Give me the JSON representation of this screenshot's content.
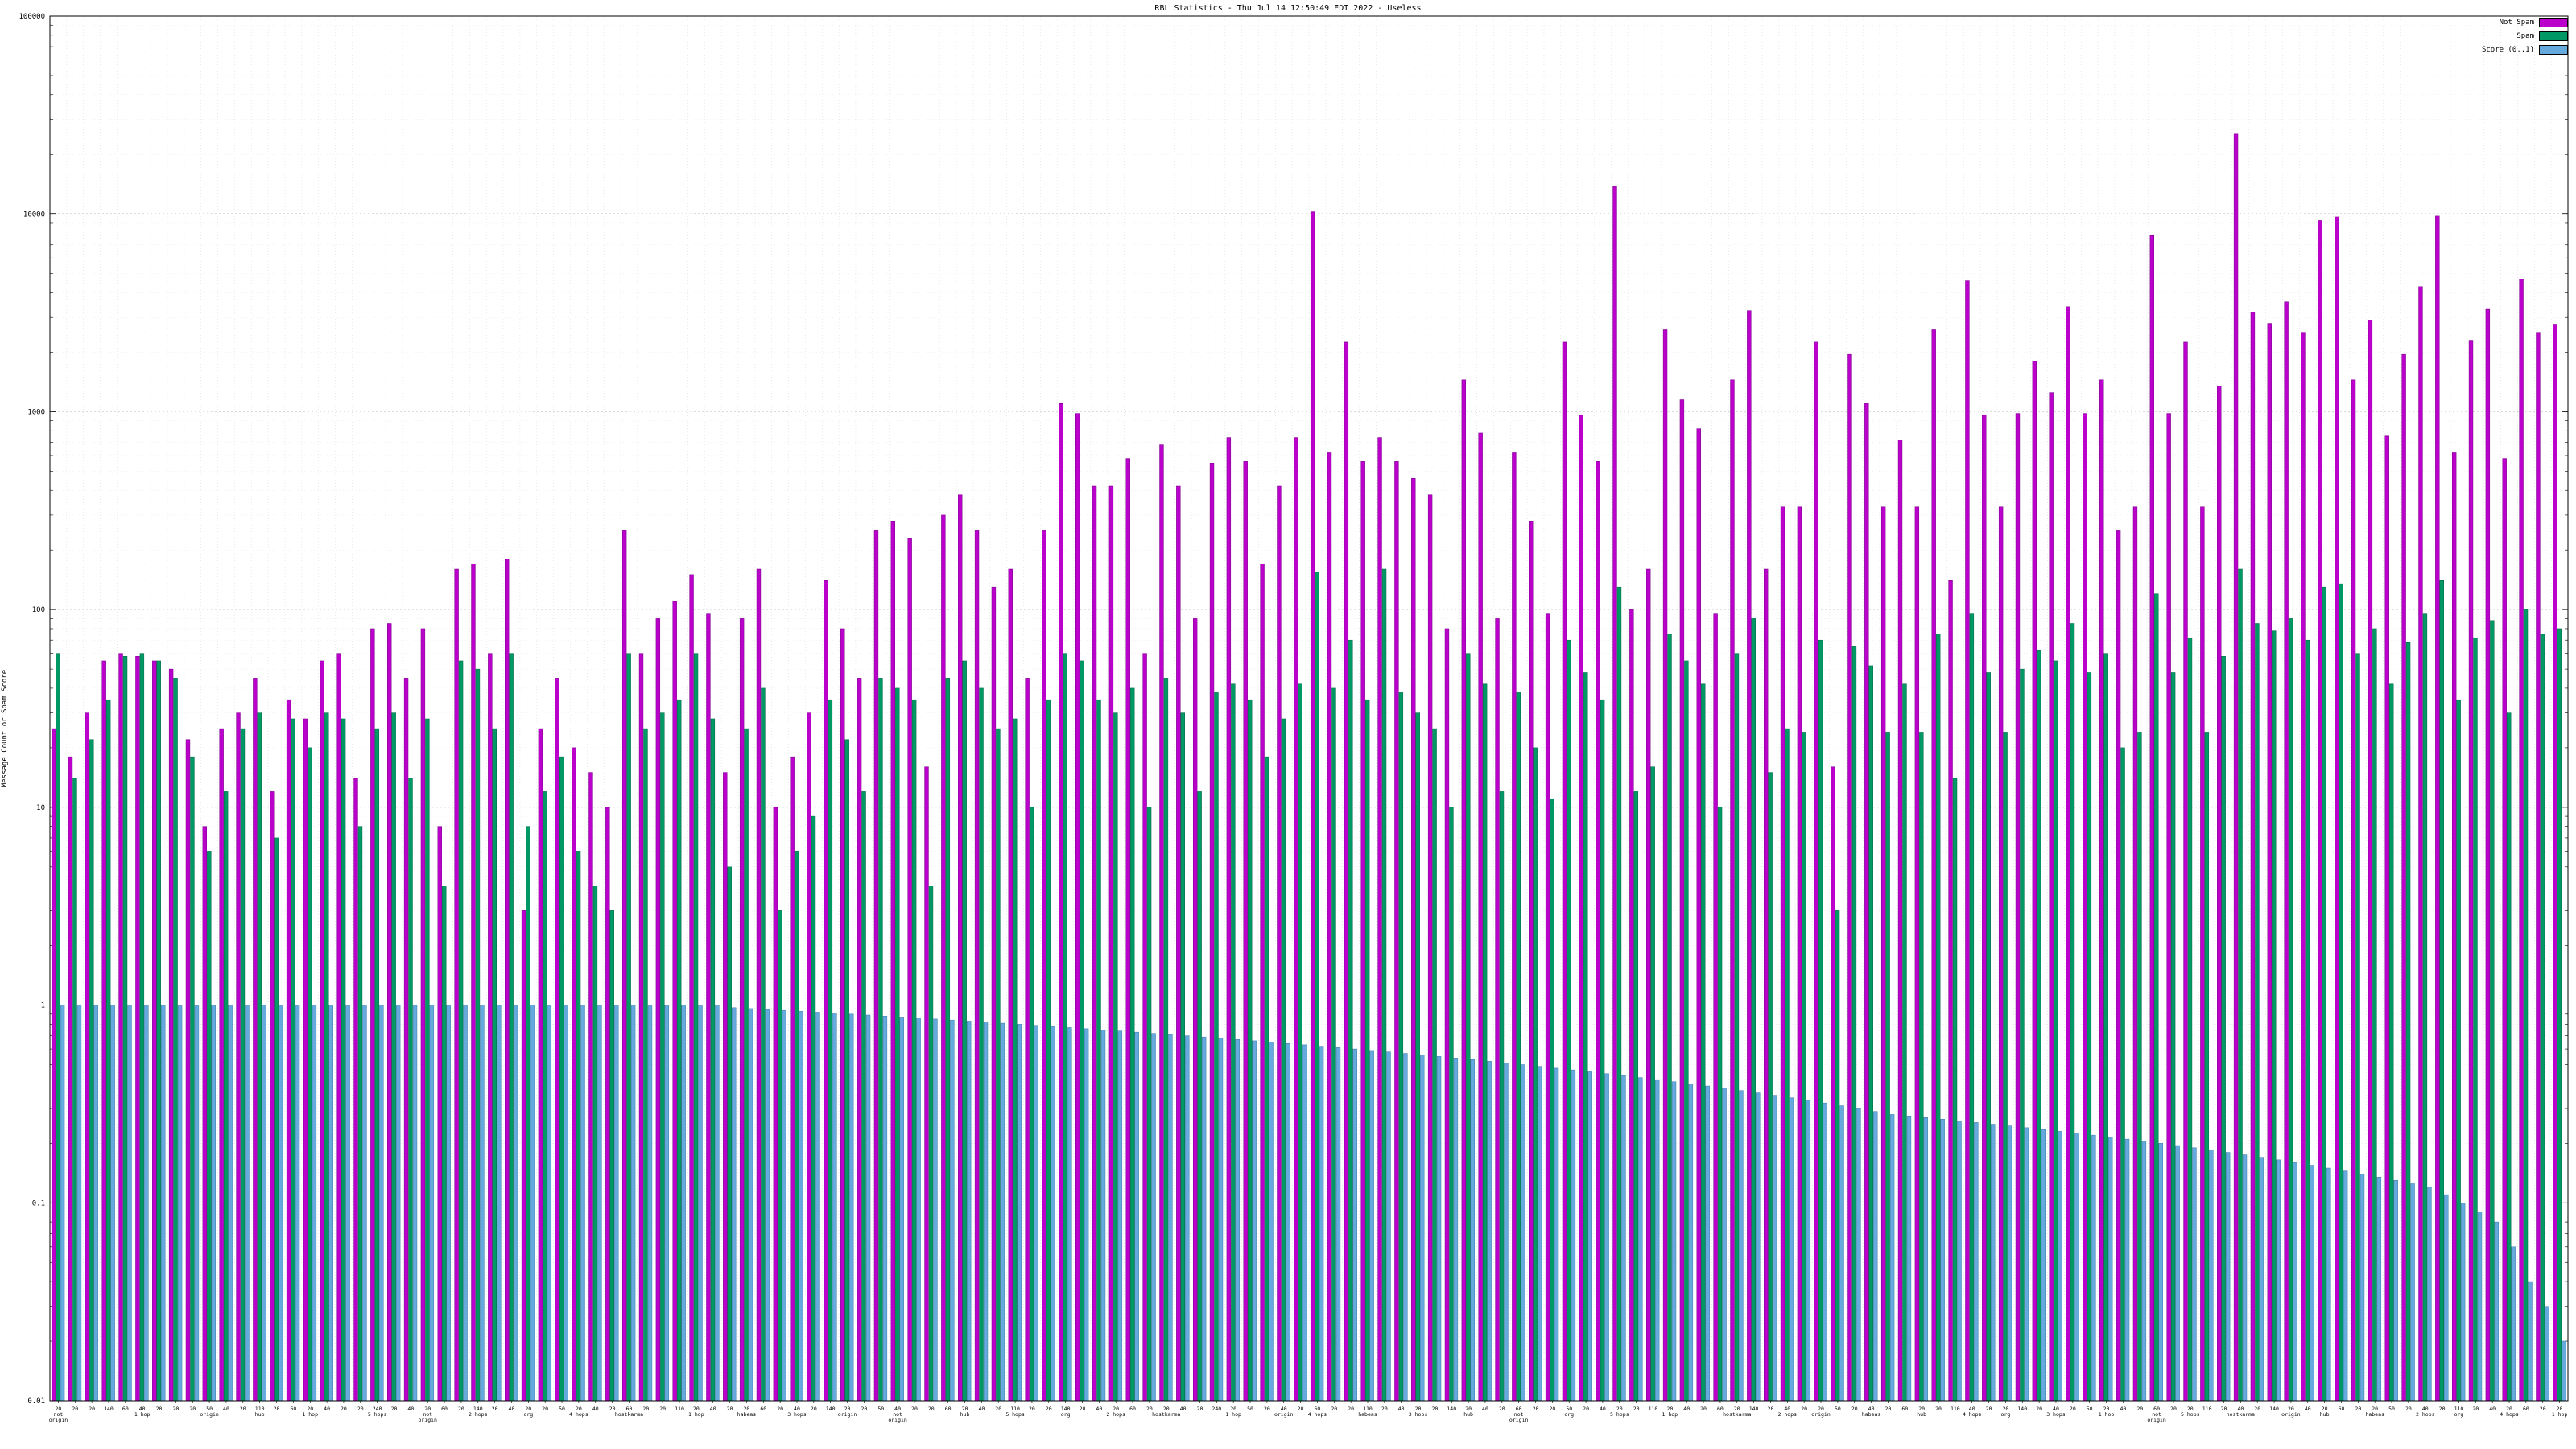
{
  "chart_data": {
    "type": "bar",
    "title": "RBL Statistics - Thu Jul 14 12:50:49 EDT 2022 - Useless",
    "xlabel": "",
    "ylabel": "Message Count or Spam Score",
    "yscale": "log",
    "ylim": [
      0.01,
      100000
    ],
    "grid": true,
    "legend_position": "top-right",
    "y_ticks": [
      "0.01",
      "0.1",
      "1",
      "10",
      "100",
      "1000",
      "10000",
      "100000"
    ],
    "categories": [
      "20\nnot\norigin",
      "20",
      "20",
      "140",
      "60",
      "40\n1 hop",
      "20",
      "20",
      "20",
      "50\norigin",
      "40",
      "20",
      "110\nhub",
      "20",
      "60",
      "20\n1 hop",
      "40",
      "20",
      "20",
      "240\n5 hops",
      "20",
      "40",
      "20\nnot\norigin",
      "60",
      "20",
      "140\n2 hops",
      "20",
      "40",
      "20\norg",
      "20",
      "50",
      "20\n4 hops",
      "40",
      "20",
      "60\nhostkarma",
      "20",
      "20",
      "110",
      "20\n1 hop",
      "40",
      "20",
      "20\nhabeas",
      "60",
      "20",
      "40\n3 hops",
      "20",
      "140",
      "20\norigin",
      "20",
      "50",
      "40\nnot\norigin",
      "20",
      "20",
      "60",
      "20\nhub",
      "40",
      "20",
      "110\n5 hops",
      "20",
      "20",
      "140\norg",
      "20",
      "40",
      "20\n2 hops",
      "60",
      "20",
      "20\nhostkarma",
      "40",
      "20",
      "240",
      "20\n1 hop",
      "50",
      "20",
      "40\norigin",
      "20",
      "60\n4 hops",
      "20",
      "20",
      "110\nhabeas",
      "20",
      "40",
      "20\n3 hops",
      "20",
      "140",
      "20\nhub",
      "40",
      "20",
      "60\nnot\norigin",
      "20",
      "20",
      "50\norg",
      "20",
      "40",
      "20\n5 hops",
      "20",
      "110",
      "20\n1 hop",
      "40",
      "20",
      "60",
      "20\nhostkarma",
      "140",
      "20",
      "40\n2 hops",
      "20",
      "20\norigin",
      "50",
      "20",
      "40\nhabeas",
      "20",
      "60",
      "20\nhub",
      "20",
      "110",
      "40\n4 hops",
      "20",
      "20\norg",
      "140",
      "20",
      "40\n3 hops",
      "20",
      "50",
      "20\n1 hop",
      "40",
      "20",
      "60\nnot\norigin",
      "20",
      "20\n5 hops",
      "110",
      "20",
      "40\nhostkarma",
      "20",
      "140",
      "20\norigin",
      "40",
      "20\nhub",
      "60",
      "20",
      "20\nhabeas",
      "50",
      "20",
      "40\n2 hops",
      "20",
      "110\norg",
      "20",
      "40",
      "20\n4 hops",
      "60",
      "20",
      "20\n1 hop"
    ],
    "series": [
      {
        "name": "Not Spam",
        "color": "#bb00cc",
        "border": "#770088",
        "values": [
          25,
          18,
          30,
          55,
          60,
          58,
          55,
          50,
          22,
          8,
          25,
          30,
          45,
          12,
          35,
          28,
          55,
          60,
          14,
          80,
          85,
          45,
          80,
          8,
          160,
          170,
          60,
          180,
          3,
          25,
          45,
          20,
          15,
          10,
          250,
          60,
          90,
          110,
          150,
          95,
          15,
          90,
          160,
          10,
          18,
          30,
          140,
          80,
          45,
          250,
          280,
          230,
          16,
          300,
          380,
          250,
          130,
          160,
          45,
          250,
          1100,
          980,
          420,
          420,
          580,
          60,
          680,
          420,
          90,
          550,
          740,
          560,
          170,
          420,
          740,
          10300,
          620,
          2250,
          560,
          740,
          560,
          460,
          380,
          80,
          1450,
          780,
          90,
          620,
          280,
          95,
          2250,
          960,
          560,
          13800,
          100,
          160,
          2600,
          1150,
          820,
          95,
          1450,
          3250,
          160,
          330,
          330,
          2250,
          16,
          1950,
          1100,
          330,
          720,
          330,
          2600,
          140,
          4600,
          960,
          330,
          980,
          1800,
          1250,
          3400,
          980,
          1450,
          250,
          330,
          7800,
          980,
          2250,
          330,
          1350,
          25500,
          3200,
          2800,
          3600,
          2500,
          9300,
          9700,
          1450,
          2900,
          760,
          1950,
          4300,
          9800,
          620,
          2300,
          3300,
          580,
          4700,
          2500,
          2750
        ]
      },
      {
        "name": "Spam",
        "color": "#009966",
        "border": "#006640",
        "values": [
          60,
          14,
          22,
          35,
          58,
          60,
          55,
          45,
          18,
          6,
          12,
          25,
          30,
          7,
          28,
          20,
          30,
          28,
          8,
          25,
          30,
          14,
          28,
          4,
          55,
          50,
          25,
          60,
          8,
          12,
          18,
          6,
          4,
          3,
          60,
          25,
          30,
          35,
          60,
          28,
          5,
          25,
          40,
          3,
          6,
          9,
          35,
          22,
          12,
          45,
          40,
          35,
          4,
          45,
          55,
          40,
          25,
          28,
          10,
          35,
          60,
          55,
          35,
          30,
          40,
          10,
          45,
          30,
          12,
          38,
          42,
          35,
          18,
          28,
          42,
          155,
          40,
          70,
          35,
          160,
          38,
          30,
          25,
          10,
          60,
          42,
          12,
          38,
          20,
          11,
          70,
          48,
          35,
          130,
          12,
          16,
          75,
          55,
          42,
          10,
          60,
          90,
          15,
          25,
          24,
          70,
          3,
          65,
          52,
          24,
          42,
          24,
          75,
          14,
          95,
          48,
          24,
          50,
          62,
          55,
          85,
          48,
          60,
          20,
          24,
          120,
          48,
          72,
          24,
          58,
          160,
          85,
          78,
          90,
          70,
          130,
          135,
          60,
          80,
          42,
          68,
          95,
          140,
          35,
          72,
          88,
          30,
          100,
          75,
          80
        ]
      },
      {
        "name": "Score (0..1)",
        "color": "#66aadd",
        "border": "#3a78aa",
        "values": [
          1.0,
          1.0,
          1.0,
          1.0,
          1.0,
          1.0,
          1.0,
          1.0,
          1.0,
          1.0,
          1.0,
          1.0,
          1.0,
          1.0,
          1.0,
          1.0,
          1.0,
          1.0,
          1.0,
          1.0,
          1.0,
          1.0,
          1.0,
          1.0,
          1.0,
          1.0,
          1.0,
          1.0,
          1.0,
          1.0,
          1.0,
          1.0,
          1.0,
          1.0,
          1.0,
          1.0,
          1.0,
          1.0,
          1.0,
          1.0,
          0.97,
          0.96,
          0.95,
          0.94,
          0.93,
          0.92,
          0.91,
          0.9,
          0.89,
          0.88,
          0.87,
          0.86,
          0.85,
          0.84,
          0.83,
          0.82,
          0.81,
          0.8,
          0.79,
          0.78,
          0.77,
          0.76,
          0.75,
          0.74,
          0.73,
          0.72,
          0.71,
          0.7,
          0.69,
          0.68,
          0.67,
          0.66,
          0.65,
          0.64,
          0.63,
          0.62,
          0.61,
          0.6,
          0.59,
          0.58,
          0.57,
          0.56,
          0.55,
          0.54,
          0.53,
          0.52,
          0.51,
          0.5,
          0.49,
          0.48,
          0.47,
          0.46,
          0.45,
          0.44,
          0.43,
          0.42,
          0.41,
          0.4,
          0.39,
          0.38,
          0.37,
          0.36,
          0.35,
          0.34,
          0.33,
          0.32,
          0.31,
          0.3,
          0.29,
          0.28,
          0.275,
          0.27,
          0.265,
          0.26,
          0.255,
          0.25,
          0.245,
          0.24,
          0.235,
          0.23,
          0.225,
          0.22,
          0.215,
          0.21,
          0.205,
          0.2,
          0.195,
          0.19,
          0.185,
          0.18,
          0.175,
          0.17,
          0.165,
          0.16,
          0.155,
          0.15,
          0.145,
          0.14,
          0.135,
          0.13,
          0.125,
          0.12,
          0.11,
          0.1,
          0.09,
          0.08,
          0.06,
          0.04,
          0.03,
          0.02
        ]
      }
    ]
  }
}
